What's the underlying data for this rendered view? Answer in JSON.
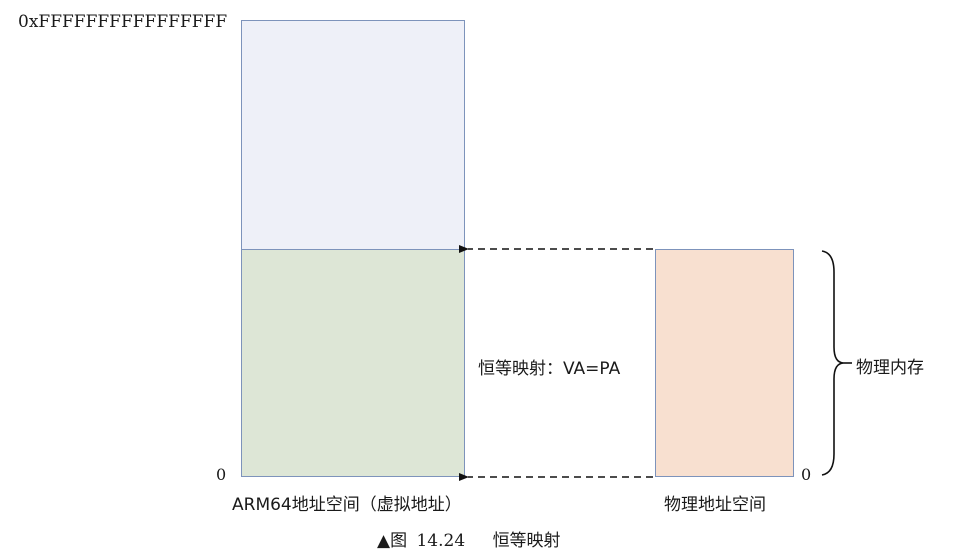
{
  "diagram": {
    "virtual_space": {
      "top_address": "0xFFFFFFFFFFFFFFFF",
      "bottom_address": "0",
      "caption": "ARM64地址空间（虚拟地址）"
    },
    "physical_space": {
      "bottom_address": "0",
      "caption": "物理地址空间",
      "brace_label": "物理内存"
    },
    "mapping_label": "恒等映射：VA=PA",
    "colors": {
      "va_upper_fill": "#eef0f8",
      "va_lower_fill": "#dde6d6",
      "pa_fill": "#f8e0d0",
      "border": "#7d93bb"
    }
  },
  "caption": {
    "marker": "▲图",
    "number": "14.24",
    "title": "恒等映射"
  }
}
